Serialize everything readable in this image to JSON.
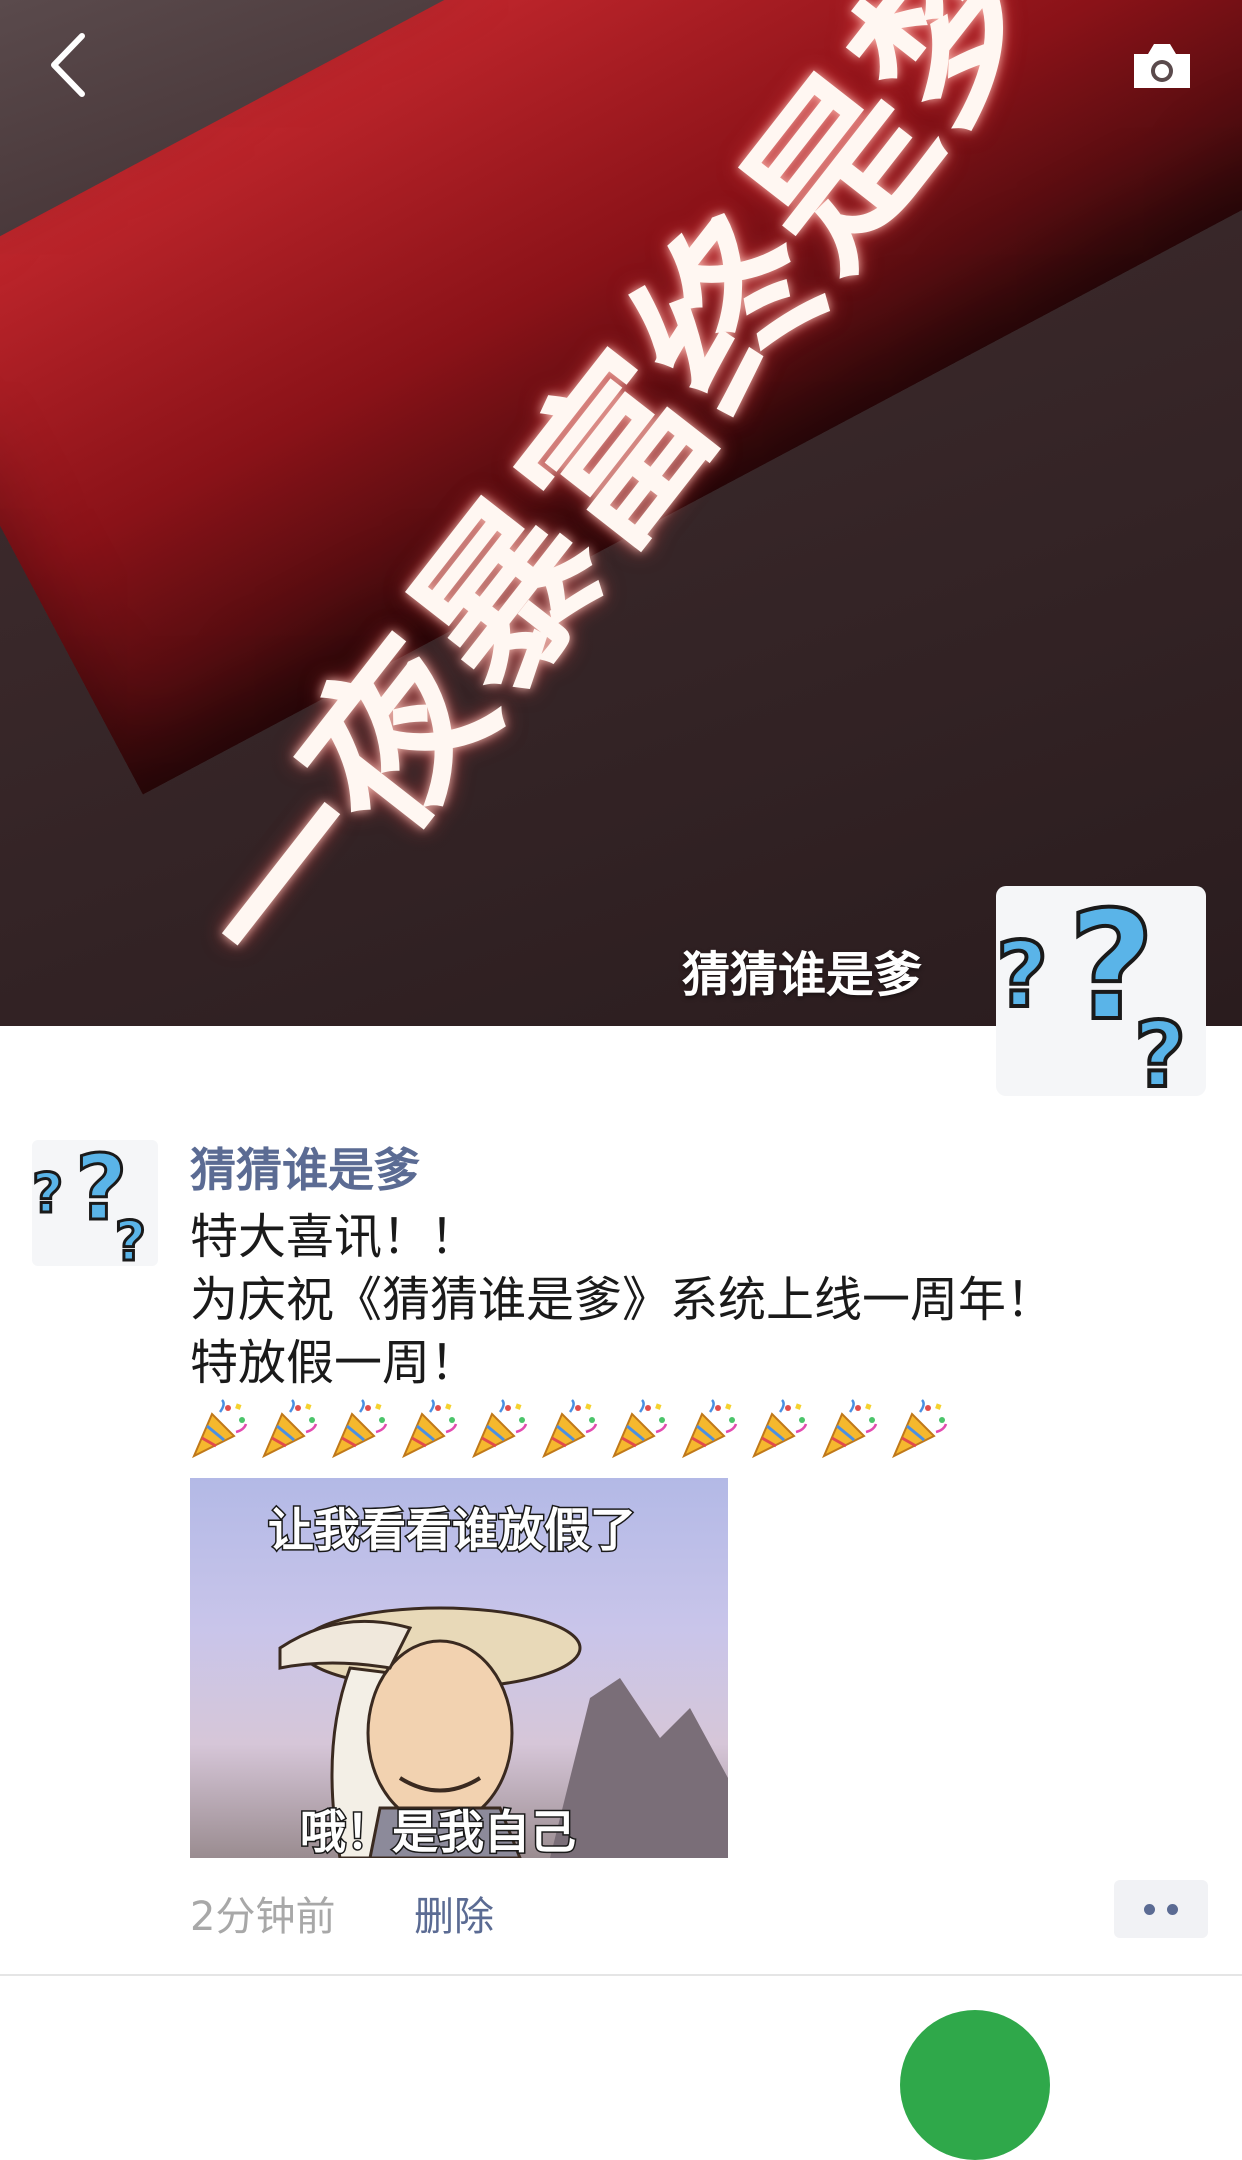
{
  "header": {
    "back_icon": "chevron-left-icon",
    "camera_icon": "camera-icon"
  },
  "cover": {
    "sign_text": "一夜暴富终是梦！",
    "username": "猜猜谁是爹",
    "avatar_icon": "question-marks-icon"
  },
  "post": {
    "author": "猜猜谁是爹",
    "lines": [
      "特大喜讯！！",
      "为庆祝《猜猜谁是爹》系统上线一周年！",
      "特放假一周！"
    ],
    "emoji_name": "party-popper-icon",
    "emoji_count": 11,
    "image": {
      "top_caption": "让我看看谁放假了",
      "bottom_caption": "哦！是我自己"
    },
    "time": "2分钟前",
    "delete_label": "删除",
    "more_icon": "more-dots-icon"
  },
  "colors": {
    "link": "#5b6b93",
    "question_mark": "#5ab4e8",
    "meta_text": "#a8a8a8"
  }
}
